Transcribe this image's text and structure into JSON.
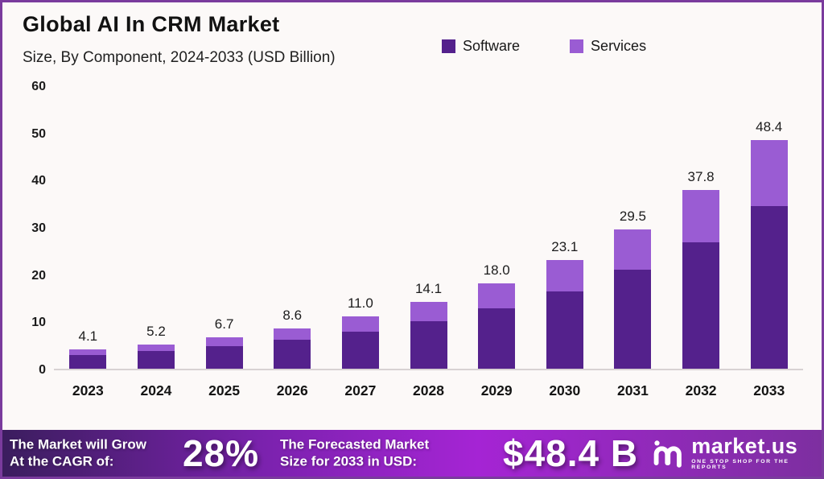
{
  "header": {
    "title": "Global AI In CRM Market",
    "subtitle": "Size, By Component, 2024-2033 (USD Billion)"
  },
  "legend": [
    {
      "label": "Software",
      "color": "#54218C"
    },
    {
      "label": "Services",
      "color": "#9A5CD3"
    }
  ],
  "chart_data": {
    "type": "bar",
    "stacked": true,
    "title": "Global AI In CRM Market",
    "subtitle": "Size, By Component, 2024-2033 (USD Billion)",
    "xlabel": "",
    "ylabel": "USD Billion",
    "ylim": [
      0,
      60
    ],
    "yticks": [
      0,
      10,
      20,
      30,
      40,
      50,
      60
    ],
    "grid": false,
    "legend_position": "top-right",
    "categories": [
      "2023",
      "2024",
      "2025",
      "2026",
      "2027",
      "2028",
      "2029",
      "2030",
      "2031",
      "2032",
      "2033"
    ],
    "series": [
      {
        "name": "Software",
        "color": "#54218C",
        "values": [
          2.9,
          3.7,
          4.8,
          6.1,
          7.8,
          10.0,
          12.8,
          16.4,
          20.9,
          26.8,
          34.4
        ]
      },
      {
        "name": "Services",
        "color": "#9A5CD3",
        "values": [
          1.2,
          1.5,
          1.9,
          2.5,
          3.2,
          4.1,
          5.2,
          6.7,
          8.6,
          11.0,
          14.0
        ]
      }
    ],
    "totals": [
      4.1,
      5.2,
      6.7,
      8.6,
      11.0,
      14.1,
      18.0,
      23.1,
      29.5,
      37.8,
      48.4
    ],
    "total_labels": [
      "4.1",
      "5.2",
      "6.7",
      "8.6",
      "11.0",
      "14.1",
      "18.0",
      "23.1",
      "29.5",
      "37.8",
      "48.4"
    ]
  },
  "footer": {
    "left_line1": "The Market will Grow",
    "left_line2": "At the CAGR of:",
    "cagr_value": "28%",
    "mid_line1": "The Forecasted Market",
    "mid_line2": "Size for 2033 in USD:",
    "forecast_value": "$48.4 B",
    "brand": "market.us",
    "brand_tagline": "ONE STOP SHOP FOR THE REPORTS"
  },
  "colors": {
    "software": "#54218C",
    "services": "#9A5CD3",
    "page_border": "#7A3B9D",
    "background": "#FCF9F8",
    "axis_line": "#D8D2D3",
    "banner_gradient": [
      "#3B1D5E",
      "#7B22AE",
      "#A524D4",
      "#7D2FA0"
    ]
  }
}
